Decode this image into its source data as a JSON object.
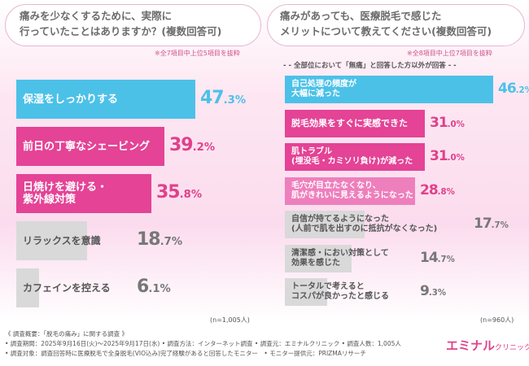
{
  "colors": {
    "blue": "#4cc1e8",
    "magenta": "#e44396",
    "pink": "#ee7fbd",
    "grey": "#d9d9d9",
    "pct_magenta": "#e0418b",
    "pct_grey": "#777777"
  },
  "chart_data": [
    {
      "type": "bar",
      "title": "痛みを少なくするために、実際に行っていたことはありますか？(複数回答可)",
      "note": "※全7項目中上位5項目を抜粋",
      "sample": "(n=1,005人)",
      "categories": [
        "保湿をしっかりする",
        "前日の丁寧なシェービング",
        "日焼けを避ける・紫外線対策",
        "リラックスを意識",
        "カフェインを控える"
      ],
      "values": [
        47.3,
        39.2,
        35.8,
        18.7,
        6.1
      ],
      "value_labels": [
        [
          "47",
          ".3",
          "%"
        ],
        [
          "39",
          ".2",
          "%"
        ],
        [
          "35",
          ".8",
          "%"
        ],
        [
          "18",
          ".7",
          "%"
        ],
        [
          "6",
          ".1",
          "%"
        ]
      ],
      "label_lines": [
        [
          "保湿をしっかりする"
        ],
        [
          "前日の丁寧なシェービング"
        ],
        [
          "日焼けを避ける・",
          "紫外線対策"
        ],
        [
          "リラックスを意識"
        ],
        [
          "カフェインを控える"
        ]
      ]
    },
    {
      "type": "bar",
      "title": "痛みがあっても、医療脱毛で感じたメリットについて教えてください(複数回答可)",
      "note": "※全8項目中上位7項目を抜粋",
      "subnote": "全部位において「無痛」と回答した方以外が回答",
      "sample": "(n=960人)",
      "categories": [
        "自己処理の頻度が大幅に減った",
        "脱毛効果をすぐに実感できた",
        "肌トラブル(埋没毛・カミソリ負け)が減った",
        "毛穴が目立たなくなり、肌がきれいに見えるようになった",
        "自信が持てるようになった(人前で肌を出すのに抵抗がなくなった)",
        "清潔感・におい対策として効果を感じた",
        "トータルで考えるとコスパが良かったと感じる"
      ],
      "values": [
        46.2,
        31.0,
        31.0,
        28.8,
        17.7,
        14.7,
        9.3
      ],
      "value_labels": [
        [
          "46",
          ".2",
          "%"
        ],
        [
          "31",
          ".0",
          "%"
        ],
        [
          "31",
          ".0",
          "%"
        ],
        [
          "28",
          ".8",
          "%"
        ],
        [
          "17",
          ".7",
          "%"
        ],
        [
          "14",
          ".7",
          "%"
        ],
        [
          "9",
          ".3",
          "%"
        ]
      ],
      "label_lines": [
        [
          "自己処理の頻度が",
          "大幅に減った"
        ],
        [
          "脱毛効果をすぐに実感できた"
        ],
        [
          "肌トラブル",
          "(埋没毛・カミソリ負け)が減った"
        ],
        [
          "毛穴が目立たなくなり、",
          "肌がきれいに見えるようになった"
        ],
        [
          "自信が持てるようになった",
          "(人前で肌を出すのに抵抗がなくなった)"
        ],
        [
          "清潔感・におい対策として",
          "効果を感じた"
        ],
        [
          "トータルで考えると",
          "コスパが良かったと感じる"
        ]
      ]
    }
  ],
  "left_title_lines": [
    "痛みを少なくするために、実際に",
    "行っていたことはありますか？(複数回答可)"
  ],
  "right_title_lines": [
    "痛みがあっても、医療脱毛で感じた",
    "メリットについて教えてください(複数回答可)"
  ],
  "footer": {
    "line1": "《 調査概要：「脱毛の痛み」に関する調査 》",
    "line2": "• 調査期間：2025年9月16日(火)〜2025年9月17日(水) • 調査方法：インターネット調査 • 調査元：エミナルクリニック • 調査人数：1,005人",
    "line3": "• 調査対象：調査回答時に医療脱毛で全身脱毛(VIO込み)完了経験があると回答したモニター　• モニター提供元：PRIZMAリサーチ"
  },
  "logo": {
    "main": "エミナル",
    "sub": "クリニック"
  }
}
